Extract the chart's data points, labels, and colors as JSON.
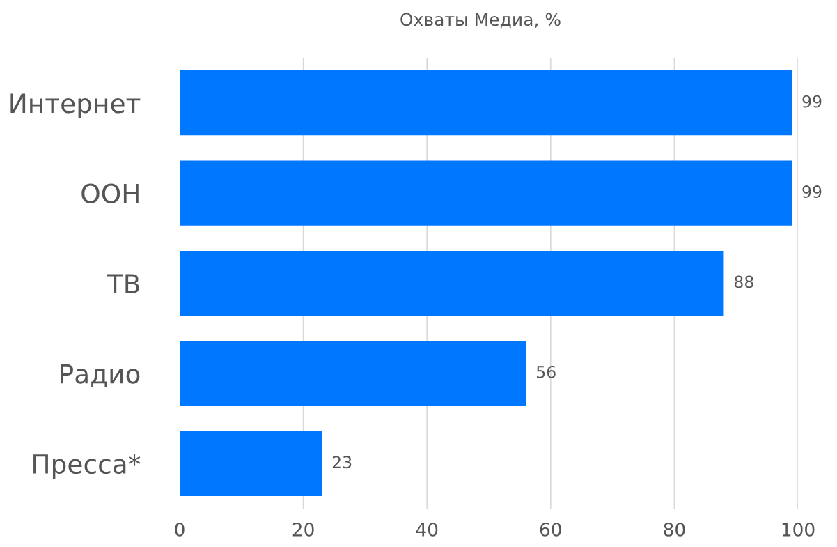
{
  "chart_data": {
    "type": "bar",
    "orientation": "horizontal",
    "title": "Охваты Медиа, %",
    "categories": [
      "Интернет",
      "ООН",
      "ТВ",
      "Радио",
      "Пресса*"
    ],
    "values": [
      99,
      99,
      88,
      56,
      23
    ],
    "color": "#0077ff",
    "xlim": [
      0,
      100
    ],
    "xticks": [
      0,
      20,
      40,
      60,
      80,
      100
    ],
    "grid": "x",
    "data_labels": true,
    "legend": false
  }
}
